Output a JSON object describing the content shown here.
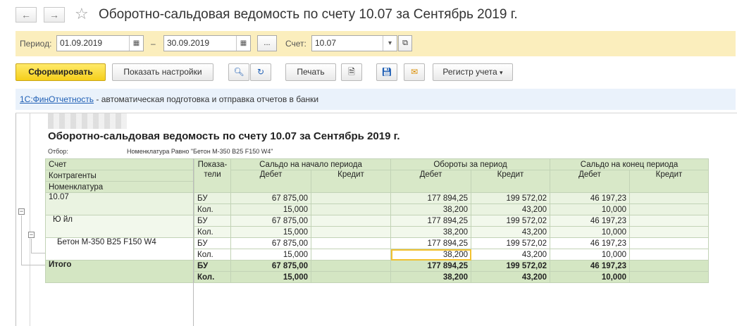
{
  "window": {
    "title": "Оборотно-сальдовая ведомость по счету 10.07 за Сентябрь 2019 г."
  },
  "params": {
    "period_label": "Период:",
    "date_from": "01.09.2019",
    "dash": "–",
    "date_to": "30.09.2019",
    "ellipsis": "...",
    "account_label": "Счет:",
    "account_value": "10.07"
  },
  "toolbar": {
    "generate": "Сформировать",
    "show_settings": "Показать настройки",
    "print": "Печать",
    "register": "Регистр учета"
  },
  "info": {
    "link": "1С:ФинОтчетность",
    "text": " - автоматическая подготовка и отправка отчетов в банки"
  },
  "report": {
    "title": "Оборотно-сальдовая ведомость по счету 10.07 за Сентябрь 2019 г.",
    "filter_label": "Отбор:",
    "filter_value": "Номенклатура Равно \"Бетон М-350 В25 F150 W4\"",
    "headers": {
      "account": "Счет",
      "counterparties": "Контрагенты",
      "nomenclature": "Номенклатура",
      "indicators_1": "Показа-",
      "indicators_2": "тели",
      "opening": "Сальдо на начало периода",
      "turnover": "Обороты за период",
      "closing": "Сальдо на конец периода",
      "debit": "Дебет",
      "credit": "Кредит"
    },
    "rows": [
      {
        "name": "10.07",
        "bu": [
          "67 875,00",
          "",
          "177 894,25",
          "199 572,02",
          "46 197,23",
          ""
        ],
        "kol": [
          "15,000",
          "",
          "38,200",
          "43,200",
          "10,000",
          ""
        ]
      },
      {
        "name": "Ю      йл",
        "bu": [
          "67 875,00",
          "",
          "177 894,25",
          "199 572,02",
          "46 197,23",
          ""
        ],
        "kol": [
          "15,000",
          "",
          "38,200",
          "43,200",
          "10,000",
          ""
        ]
      },
      {
        "name": "Бетон М-350 В25 F150 W4",
        "bu": [
          "67 875,00",
          "",
          "177 894,25",
          "199 572,02",
          "46 197,23",
          ""
        ],
        "kol": [
          "15,000",
          "",
          "38,200",
          "43,200",
          "10,000",
          ""
        ]
      }
    ],
    "total": {
      "name": "Итого",
      "bu": [
        "67 875,00",
        "",
        "177 894,25",
        "199 572,02",
        "46 197,23",
        ""
      ],
      "kol": [
        "15,000",
        "",
        "38,200",
        "43,200",
        "10,000",
        ""
      ]
    },
    "indicator_bu": "БУ",
    "indicator_kol": "Кол."
  }
}
